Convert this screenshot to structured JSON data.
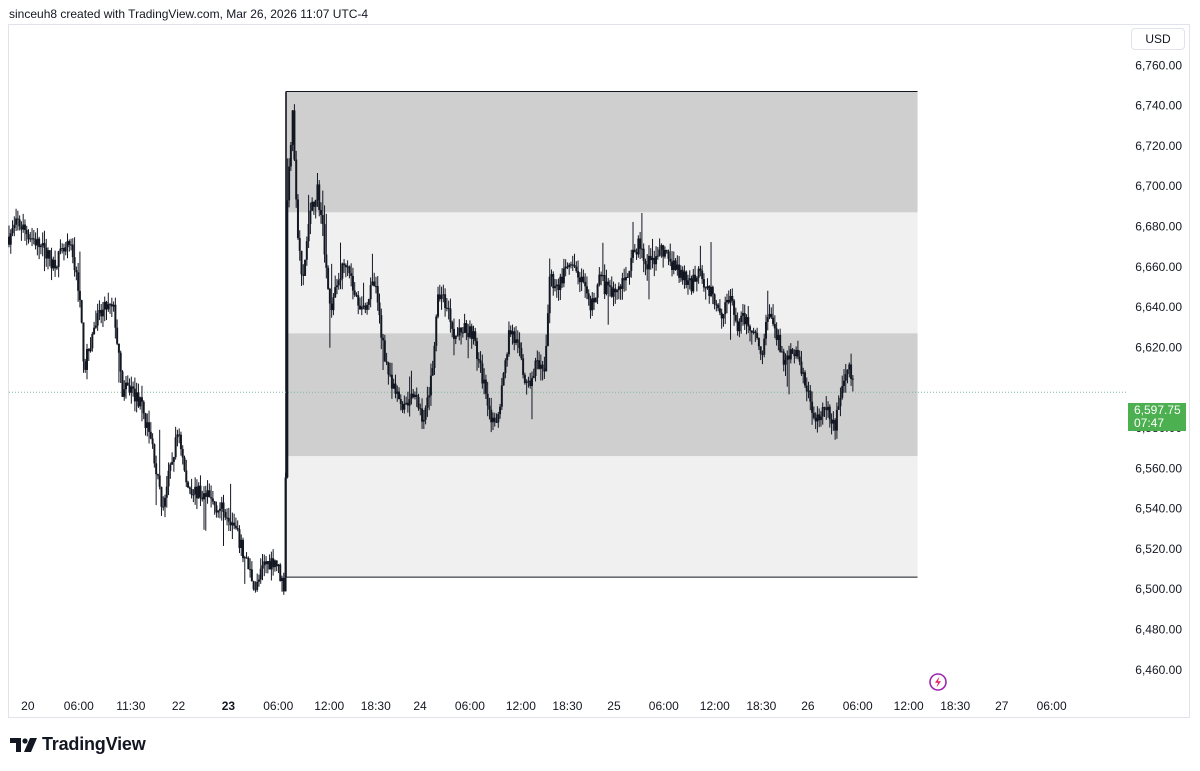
{
  "header": {
    "text": "sinceuh8 created with TradingView.com, Mar 26, 2026 11:07 UTC-4"
  },
  "price_scale": {
    "currency": "USD"
  },
  "last_price": {
    "value": "6,597.75",
    "countdown": "07:47",
    "color": "#4caf50"
  },
  "branding": {
    "wordmark": "TradingView",
    "logo_icon": "tradingview-logo-icon"
  },
  "event_marker": {
    "icon": "lightning-icon",
    "color": "#9c27b0"
  },
  "colors": {
    "zone_dark": "#cfcfcf",
    "zone_light": "#f0f0f0",
    "candle": "#131722",
    "grid_border": "#e0e3eb"
  },
  "chart_data": {
    "type": "candlestick",
    "title": "",
    "xlabel": "",
    "ylabel": "",
    "ylim": [
      6450,
      6780
    ],
    "y_ticks": [
      {
        "value": 6760,
        "label": "6,760.00"
      },
      {
        "value": 6740,
        "label": "6,740.00"
      },
      {
        "value": 6720,
        "label": "6,720.00"
      },
      {
        "value": 6700,
        "label": "6,700.00"
      },
      {
        "value": 6680,
        "label": "6,680.00"
      },
      {
        "value": 6660,
        "label": "6,660.00"
      },
      {
        "value": 6640,
        "label": "6,640.00"
      },
      {
        "value": 6620,
        "label": "6,620.00"
      },
      {
        "value": 6580,
        "label": "6,580.00"
      },
      {
        "value": 6560,
        "label": "6,560.00"
      },
      {
        "value": 6540,
        "label": "6,540.00"
      },
      {
        "value": 6520,
        "label": "6,520.00"
      },
      {
        "value": 6500,
        "label": "6,500.00"
      },
      {
        "value": 6480,
        "label": "6,480.00"
      },
      {
        "value": 6460,
        "label": "6,460.00"
      }
    ],
    "x_range": [
      0,
      100
    ],
    "x_ticks": [
      {
        "label": "20",
        "x": 1.7,
        "bold": false
      },
      {
        "label": "06:00",
        "x": 6.3,
        "bold": false
      },
      {
        "label": "11:30",
        "x": 11.0,
        "bold": false
      },
      {
        "label": "22",
        "x": 15.3,
        "bold": false
      },
      {
        "label": "23",
        "x": 19.8,
        "bold": true
      },
      {
        "label": "06:00",
        "x": 24.3,
        "bold": false
      },
      {
        "label": "12:00",
        "x": 28.9,
        "bold": false
      },
      {
        "label": "18:30",
        "x": 33.1,
        "bold": false
      },
      {
        "label": "24",
        "x": 37.1,
        "bold": false
      },
      {
        "label": "06:00",
        "x": 41.6,
        "bold": false
      },
      {
        "label": "12:00",
        "x": 46.2,
        "bold": false
      },
      {
        "label": "18:30",
        "x": 50.4,
        "bold": false
      },
      {
        "label": "25",
        "x": 54.6,
        "bold": false
      },
      {
        "label": "06:00",
        "x": 59.1,
        "bold": false
      },
      {
        "label": "12:00",
        "x": 63.7,
        "bold": false
      },
      {
        "label": "18:30",
        "x": 67.9,
        "bold": false
      },
      {
        "label": "26",
        "x": 72.1,
        "bold": false
      },
      {
        "label": "06:00",
        "x": 76.6,
        "bold": false
      },
      {
        "label": "12:00",
        "x": 81.2,
        "bold": false
      },
      {
        "label": "18:30",
        "x": 85.4,
        "bold": false
      },
      {
        "label": "27",
        "x": 89.6,
        "bold": false
      },
      {
        "label": "06:00",
        "x": 94.1,
        "bold": false
      }
    ],
    "last_price": 6597.75,
    "zones": [
      {
        "y0": 6687,
        "y1": 6747,
        "x0": 25.0,
        "x1": 82.0,
        "shade": "dark"
      },
      {
        "y0": 6627,
        "y1": 6687,
        "x0": 25.0,
        "x1": 82.0,
        "shade": "light"
      },
      {
        "y0": 6566,
        "y1": 6627,
        "x0": 25.0,
        "x1": 82.0,
        "shade": "dark"
      },
      {
        "y0": 6506,
        "y1": 6566,
        "x0": 25.0,
        "x1": 82.0,
        "shade": "light"
      }
    ],
    "zone_left_line": {
      "x": 25.0,
      "y0": 6506,
      "y1": 6747
    },
    "series": [
      {
        "path": [
          [
            0.0,
            6675
          ],
          [
            0.8,
            6682
          ],
          [
            2.5,
            6672
          ],
          [
            4.0,
            6662
          ],
          [
            5.5,
            6670
          ],
          [
            6.3,
            6650
          ],
          [
            6.8,
            6610
          ],
          [
            7.8,
            6632
          ],
          [
            8.8,
            6640
          ],
          [
            9.5,
            6638
          ],
          [
            10.2,
            6598
          ],
          [
            11.0,
            6600
          ],
          [
            12.0,
            6590
          ],
          [
            13.0,
            6570
          ],
          [
            13.8,
            6540
          ],
          [
            14.6,
            6560
          ],
          [
            15.3,
            6580
          ],
          [
            16.0,
            6552
          ],
          [
            17.0,
            6548
          ],
          [
            18.0,
            6545
          ],
          [
            19.0,
            6540
          ],
          [
            19.8,
            6538
          ],
          [
            20.5,
            6528
          ],
          [
            21.5,
            6512
          ],
          [
            22.3,
            6500
          ],
          [
            23.0,
            6512
          ],
          [
            24.0,
            6515
          ],
          [
            24.9,
            6500
          ],
          [
            25.1,
            6690
          ],
          [
            25.6,
            6740
          ],
          [
            26.0,
            6680
          ],
          [
            26.5,
            6650
          ],
          [
            27.0,
            6680
          ],
          [
            27.8,
            6700
          ],
          [
            28.4,
            6675
          ],
          [
            29.0,
            6638
          ],
          [
            29.8,
            6655
          ],
          [
            30.5,
            6665
          ],
          [
            31.2,
            6645
          ],
          [
            32.0,
            6640
          ],
          [
            33.0,
            6652
          ],
          [
            33.8,
            6620
          ],
          [
            34.5,
            6600
          ],
          [
            35.5,
            6592
          ],
          [
            36.5,
            6596
          ],
          [
            37.5,
            6584
          ],
          [
            38.2,
            6610
          ],
          [
            38.8,
            6648
          ],
          [
            39.6,
            6640
          ],
          [
            40.3,
            6625
          ],
          [
            41.0,
            6630
          ],
          [
            41.8,
            6628
          ],
          [
            42.5,
            6610
          ],
          [
            43.2,
            6595
          ],
          [
            43.8,
            6578
          ],
          [
            44.5,
            6600
          ],
          [
            45.2,
            6630
          ],
          [
            46.0,
            6618
          ],
          [
            46.8,
            6598
          ],
          [
            47.5,
            6612
          ],
          [
            48.3,
            6605
          ],
          [
            48.8,
            6655
          ],
          [
            49.5,
            6650
          ],
          [
            50.5,
            6660
          ],
          [
            51.5,
            6655
          ],
          [
            52.5,
            6638
          ],
          [
            53.3,
            6655
          ],
          [
            54.0,
            6648
          ],
          [
            55.0,
            6648
          ],
          [
            56.0,
            6660
          ],
          [
            56.8,
            6672
          ],
          [
            57.5,
            6660
          ],
          [
            58.3,
            6665
          ],
          [
            59.0,
            6668
          ],
          [
            60.0,
            6660
          ],
          [
            60.8,
            6655
          ],
          [
            61.5,
            6650
          ],
          [
            62.3,
            6660
          ],
          [
            63.0,
            6648
          ],
          [
            63.7,
            6645
          ],
          [
            64.3,
            6638
          ],
          [
            65.0,
            6645
          ],
          [
            65.8,
            6630
          ],
          [
            66.5,
            6635
          ],
          [
            67.2,
            6628
          ],
          [
            68.0,
            6618
          ],
          [
            68.6,
            6640
          ],
          [
            69.3,
            6625
          ],
          [
            70.0,
            6612
          ],
          [
            70.8,
            6620
          ],
          [
            71.5,
            6610
          ],
          [
            72.3,
            6592
          ],
          [
            73.0,
            6585
          ],
          [
            73.8,
            6588
          ],
          [
            74.5,
            6580
          ],
          [
            75.2,
            6602
          ],
          [
            75.8,
            6610
          ],
          [
            76.3,
            6598
          ]
        ]
      }
    ]
  }
}
